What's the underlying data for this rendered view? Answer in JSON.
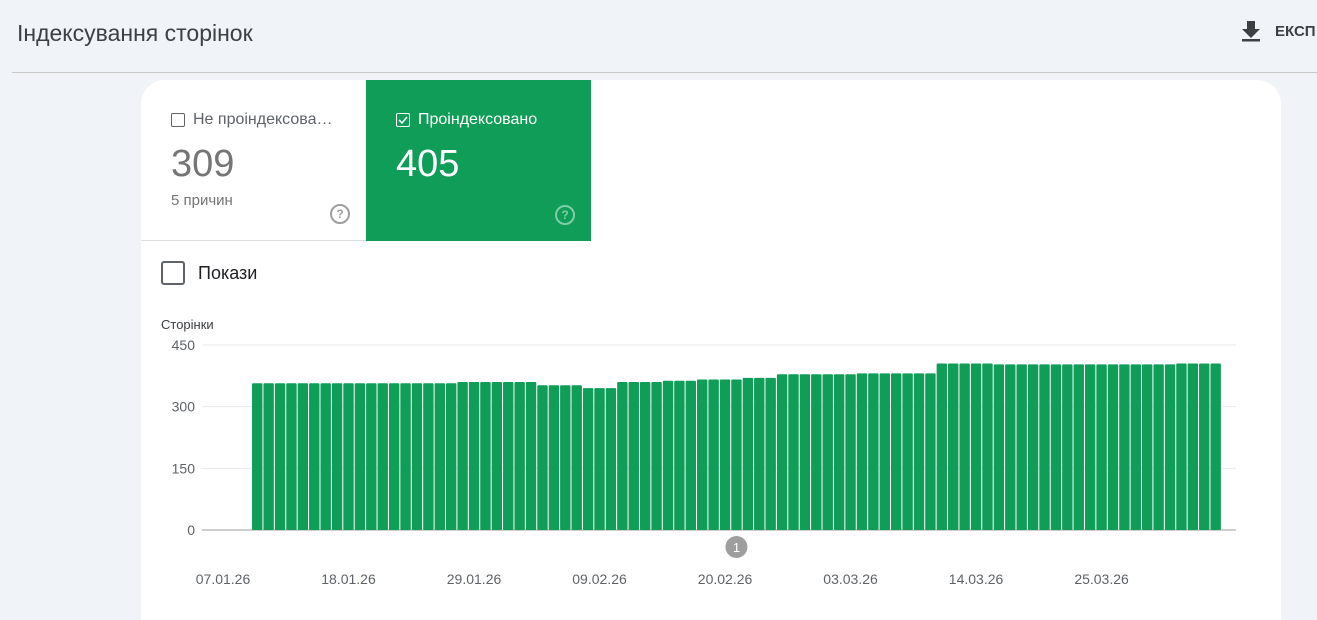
{
  "header": {
    "title": "Індексування сторінок",
    "export_label": "ЕКСП",
    "export_icon": "download-icon"
  },
  "tiles": [
    {
      "label": "Не проіндексова…",
      "value": "309",
      "sub": "5 причин",
      "checked": false,
      "help_icon": "help-icon"
    },
    {
      "label": "Проіндексовано",
      "value": "405",
      "checked": true,
      "help_icon": "help-icon",
      "color": "#0f9d58"
    }
  ],
  "impressions": {
    "label": "Покази",
    "checked": false
  },
  "chart_data": {
    "type": "bar",
    "ylabel": "Сторінки",
    "ylim": [
      0,
      450
    ],
    "yticks": [
      "0",
      "150",
      "300",
      "450"
    ],
    "xticks": [
      "07.01.26",
      "18.01.26",
      "29.01.26",
      "09.02.26",
      "20.02.26",
      "03.03.26",
      "14.03.26",
      "25.03.26"
    ],
    "grid": true,
    "color": "#0f9d58",
    "annotations": [
      {
        "label": "1",
        "date": "21.02.26"
      }
    ],
    "series": [
      {
        "name": "Проіндексовано",
        "x": [
          "10.01.26",
          "11.01.26",
          "12.01.26",
          "13.01.26",
          "14.01.26",
          "15.01.26",
          "16.01.26",
          "17.01.26",
          "18.01.26",
          "19.01.26",
          "20.01.26",
          "21.01.26",
          "22.01.26",
          "23.01.26",
          "24.01.26",
          "25.01.26",
          "26.01.26",
          "27.01.26",
          "28.01.26",
          "29.01.26",
          "30.01.26",
          "31.01.26",
          "01.02.26",
          "02.02.26",
          "03.02.26",
          "04.02.26",
          "05.02.26",
          "06.02.26",
          "07.02.26",
          "08.02.26",
          "09.02.26",
          "10.02.26",
          "11.02.26",
          "12.02.26",
          "13.02.26",
          "14.02.26",
          "15.02.26",
          "16.02.26",
          "17.02.26",
          "18.02.26",
          "19.02.26",
          "20.02.26",
          "21.02.26",
          "22.02.26",
          "23.02.26",
          "24.02.26",
          "25.02.26",
          "26.02.26",
          "27.02.26",
          "28.02.26",
          "01.03.26",
          "02.03.26",
          "03.03.26",
          "04.03.26",
          "05.03.26",
          "06.03.26",
          "07.03.26",
          "08.03.26",
          "09.03.26",
          "10.03.26",
          "11.03.26",
          "12.03.26",
          "13.03.26",
          "14.03.26",
          "15.03.26",
          "16.03.26",
          "17.03.26",
          "18.03.26",
          "19.03.26",
          "20.03.26",
          "21.03.26",
          "22.03.26",
          "23.03.26",
          "24.03.26",
          "25.03.26",
          "26.03.26",
          "27.03.26",
          "28.03.26",
          "29.03.26",
          "30.03.26",
          "31.03.26",
          "01.04.26",
          "02.04.26",
          "03.04.26",
          "04.04.26"
        ],
        "values": [
          357,
          357,
          357,
          357,
          357,
          357,
          357,
          357,
          357,
          357,
          357,
          357,
          357,
          357,
          357,
          357,
          357,
          357,
          360,
          360,
          360,
          360,
          360,
          360,
          360,
          352,
          352,
          352,
          352,
          345,
          345,
          345,
          360,
          360,
          360,
          360,
          363,
          363,
          363,
          366,
          366,
          366,
          366,
          370,
          370,
          370,
          379,
          379,
          379,
          379,
          379,
          379,
          379,
          381,
          381,
          381,
          381,
          381,
          381,
          381,
          405,
          405,
          405,
          405,
          405,
          403,
          403,
          403,
          403,
          403,
          403,
          403,
          403,
          403,
          403,
          403,
          403,
          403,
          403,
          403,
          403,
          405,
          405,
          405,
          405
        ]
      }
    ]
  }
}
